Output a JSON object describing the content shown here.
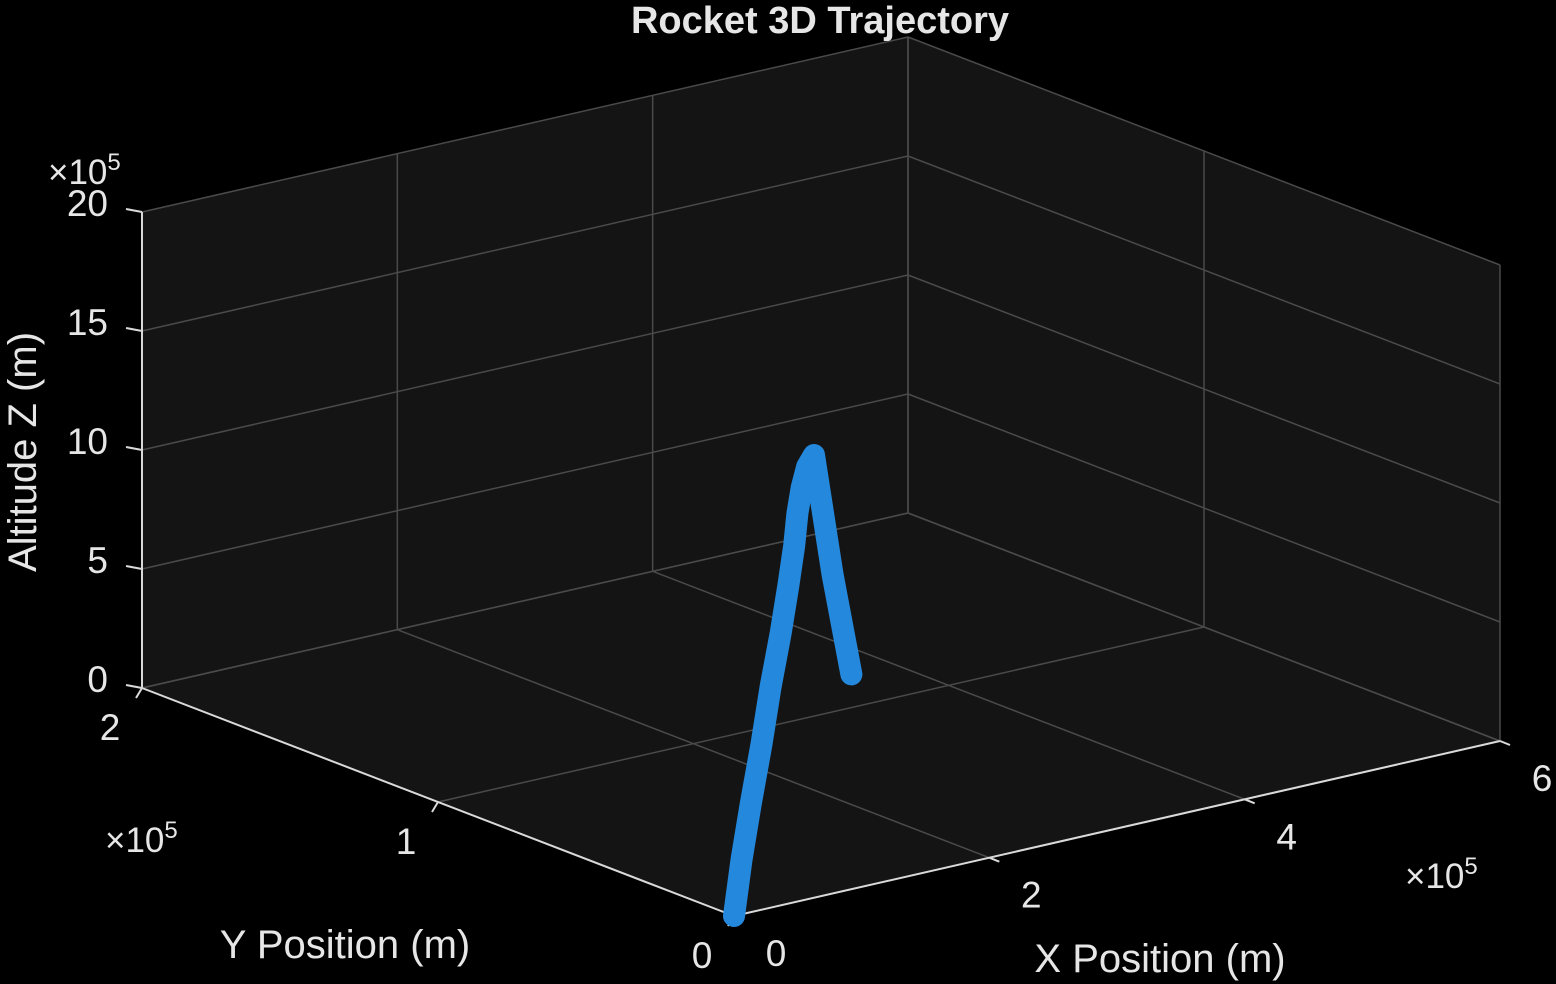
{
  "colors": {
    "background": "#000000",
    "axes_background": "#141414",
    "grid": "#4a4a4a",
    "axis_line": "#d9d9d9",
    "text": "#e6e6e6",
    "series": "#2488dc"
  },
  "chart_data": {
    "type": "line3d",
    "title": "Rocket 3D Trajectory",
    "xlabel": "X Position (m)",
    "ylabel": "Y Position (m)",
    "zlabel": "Altitude Z (m)",
    "xlim": [
      0,
      600000
    ],
    "ylim": [
      0,
      200000
    ],
    "zlim": [
      0,
      2000000
    ],
    "xticks": [
      "0",
      "2",
      "4",
      "6"
    ],
    "yticks": [
      "0",
      "1",
      "2"
    ],
    "zticks": [
      "0",
      "5",
      "10",
      "15",
      "20"
    ],
    "x_exponent": "×10",
    "y_exponent": "×10",
    "z_exponent": "×10",
    "exponent_power": "5",
    "grid": true,
    "view": "3d-perspective",
    "series": [
      {
        "color": "#2488dc",
        "x": [
          0,
          7000,
          16000,
          27000,
          38000,
          50000,
          60000,
          68000,
          74000,
          79000,
          84000,
          90000,
          105000,
          120000
        ],
        "y": [
          0,
          500,
          1200,
          2400,
          4000,
          5800,
          7500,
          9000,
          10500,
          11200,
          11500,
          11800,
          12000,
          12100
        ],
        "z": [
          0,
          225000,
          450000,
          675000,
          900000,
          1100000,
          1280000,
          1430000,
          1550000,
          1650000,
          1730000,
          1770000,
          1250000,
          810000
        ]
      }
    ]
  }
}
